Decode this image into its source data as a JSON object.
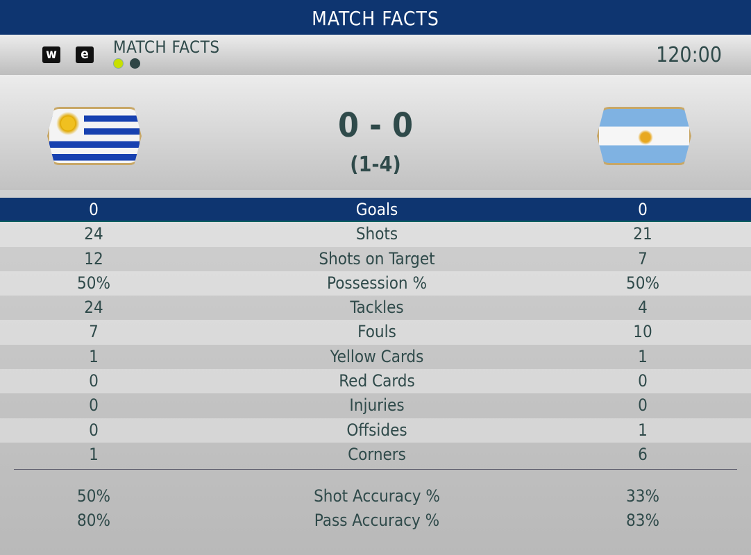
{
  "header": {
    "title": "MATCH FACTS"
  },
  "subheader": {
    "key_left": "w",
    "key_right": "e",
    "title": "MATCH FACTS",
    "page_dots": [
      {
        "active": true,
        "color": "#c8e000"
      },
      {
        "active": false,
        "color": "#2f4545"
      }
    ],
    "clock": "120:00"
  },
  "match": {
    "home_team": "Uruguay",
    "away_team": "Argentina",
    "score": "0 - 0",
    "penalties": "(1-4)"
  },
  "stats": [
    {
      "home": "0",
      "label": "Goals",
      "away": "0",
      "highlighted": true
    },
    {
      "home": "24",
      "label": "Shots",
      "away": "21"
    },
    {
      "home": "12",
      "label": "Shots on Target",
      "away": "7"
    },
    {
      "home": "50%",
      "label": "Possession %",
      "away": "50%"
    },
    {
      "home": "24",
      "label": "Tackles",
      "away": "4"
    },
    {
      "home": "7",
      "label": "Fouls",
      "away": "10"
    },
    {
      "home": "1",
      "label": "Yellow Cards",
      "away": "1"
    },
    {
      "home": "0",
      "label": "Red Cards",
      "away": "0"
    },
    {
      "home": "0",
      "label": "Injuries",
      "away": "0"
    },
    {
      "home": "0",
      "label": "Offsides",
      "away": "1"
    },
    {
      "home": "1",
      "label": "Corners",
      "away": "6"
    }
  ],
  "accuracy": [
    {
      "home": "50%",
      "label": "Shot Accuracy %",
      "away": "33%"
    },
    {
      "home": "80%",
      "label": "Pass Accuracy %",
      "away": "83%"
    }
  ],
  "colors": {
    "header": "#0e3570",
    "text": "#2f4a4a"
  }
}
